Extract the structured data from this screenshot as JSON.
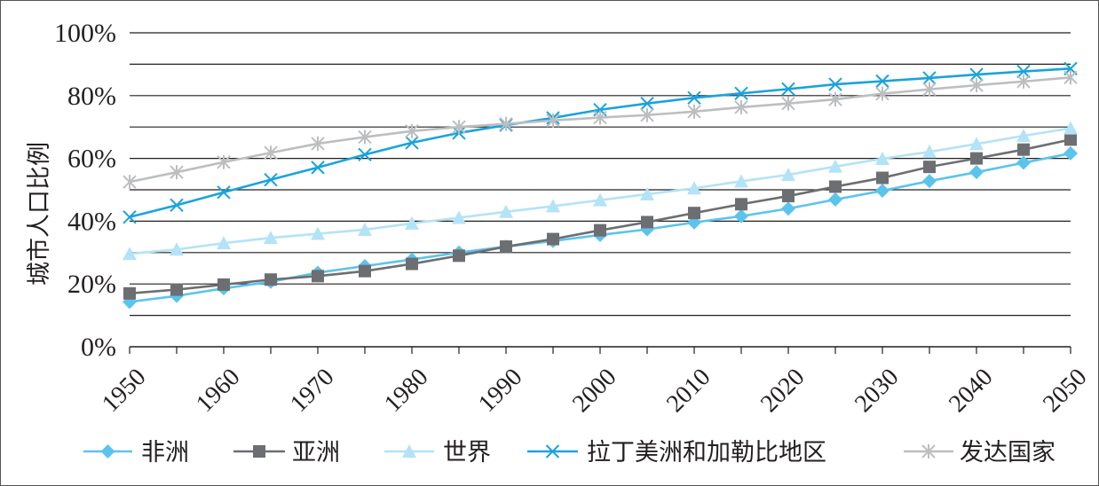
{
  "chart_data": {
    "type": "line",
    "ylabel": "城市人口比例",
    "xlabel": "",
    "x": [
      1950,
      1955,
      1960,
      1965,
      1970,
      1975,
      1980,
      1985,
      1990,
      1995,
      2000,
      2005,
      2010,
      2015,
      2020,
      2025,
      2030,
      2035,
      2040,
      2045,
      2050
    ],
    "x_tick_labels": [
      "1950",
      "1960",
      "1970",
      "1980",
      "1990",
      "2000",
      "2010",
      "2020",
      "2030",
      "2040",
      "2050"
    ],
    "x_tick_values": [
      1950,
      1960,
      1970,
      1980,
      1990,
      2000,
      2010,
      2020,
      2030,
      2040,
      2050
    ],
    "y_tick_labels": [
      "0%",
      "20%",
      "40%",
      "60%",
      "80%",
      "100%"
    ],
    "y_tick_values": [
      0,
      20,
      40,
      60,
      80,
      100
    ],
    "ylim": [
      0,
      100
    ],
    "xlim": [
      1950,
      2050
    ],
    "grid": "horizontal every 10%",
    "legend_position": "bottom",
    "series": [
      {
        "name": "非洲",
        "marker": "diamond",
        "color": "#5bc4ec",
        "values": [
          14.3,
          16.2,
          18.6,
          20.7,
          23.6,
          25.7,
          27.8,
          30.0,
          31.9,
          33.7,
          35.6,
          37.4,
          39.6,
          41.6,
          44.0,
          46.9,
          49.7,
          52.8,
          55.6,
          58.6,
          61.6
        ]
      },
      {
        "name": "亚洲",
        "marker": "square",
        "color": "#6d6e71",
        "values": [
          17.0,
          18.2,
          19.8,
          21.4,
          22.5,
          24.1,
          26.4,
          29.0,
          31.9,
          34.3,
          37.1,
          39.7,
          42.6,
          45.4,
          48.0,
          51.0,
          53.8,
          57.3,
          60.0,
          62.8,
          66.0
        ]
      },
      {
        "name": "世界",
        "marker": "triangle",
        "color": "#b3e3f6",
        "values": [
          29.6,
          31.0,
          33.0,
          34.7,
          36.0,
          37.3,
          39.3,
          41.1,
          43.0,
          44.8,
          46.7,
          48.6,
          50.5,
          52.7,
          54.8,
          57.4,
          59.9,
          62.1,
          64.6,
          67.2,
          69.6
        ]
      },
      {
        "name": "拉丁美洲和加勒比地区",
        "marker": "x",
        "color": "#1aa3dc",
        "values": [
          41.3,
          45.1,
          49.2,
          53.2,
          57.1,
          61.2,
          65.0,
          68.1,
          70.6,
          72.9,
          75.5,
          77.5,
          79.3,
          80.7,
          82.1,
          83.6,
          84.6,
          85.6,
          86.7,
          87.7,
          88.6
        ]
      },
      {
        "name": "发达国家",
        "marker": "asterisk",
        "color": "#bcbec0",
        "values": [
          52.5,
          55.6,
          58.8,
          61.8,
          64.7,
          66.8,
          68.7,
          70.0,
          71.0,
          72.1,
          73.0,
          73.8,
          74.9,
          76.3,
          77.5,
          78.8,
          80.6,
          82.0,
          83.3,
          84.5,
          85.8
        ]
      }
    ]
  }
}
